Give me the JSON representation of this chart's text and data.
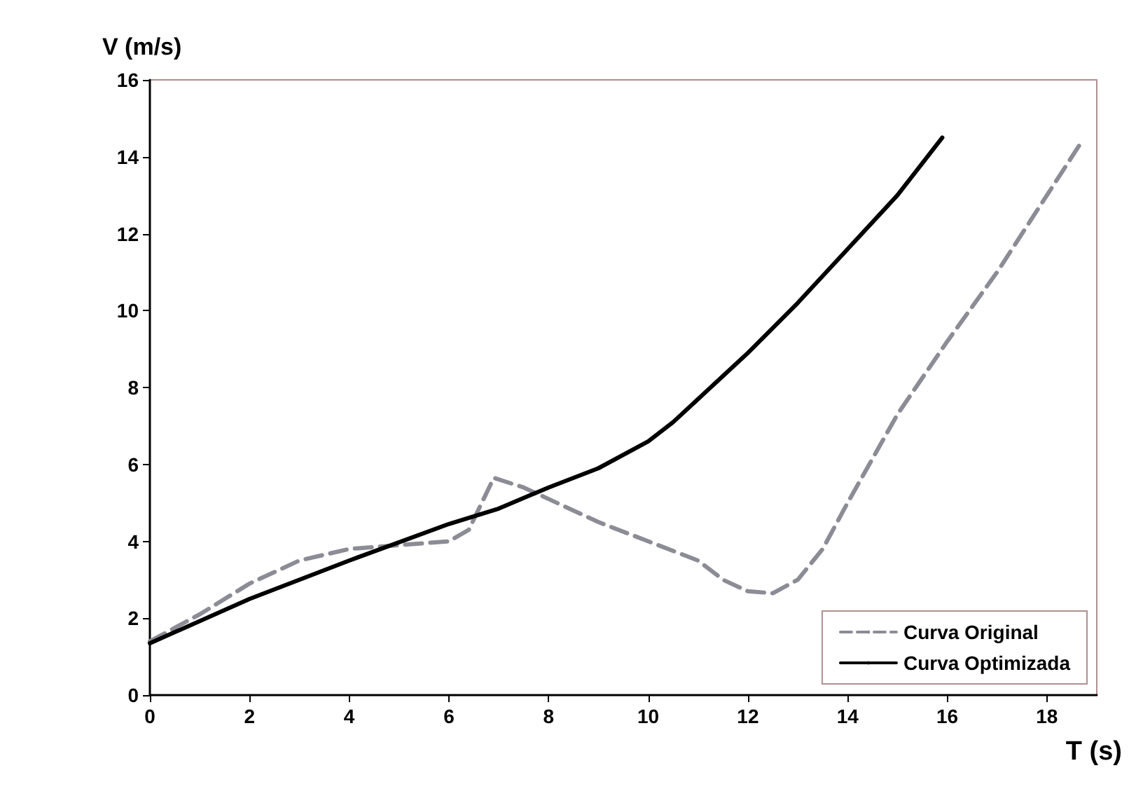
{
  "chart_data": {
    "type": "line",
    "xlabel": "T (s)",
    "ylabel": "V (m/s)",
    "xlim": [
      0,
      19
    ],
    "xticks": [
      0,
      2,
      4,
      6,
      8,
      10,
      12,
      14,
      16,
      18
    ],
    "ylim": [
      0,
      16
    ],
    "yticks": [
      0,
      2,
      4,
      6,
      8,
      10,
      12,
      14,
      16
    ],
    "grid": false,
    "legend": "bottom right",
    "marker": "none",
    "series": [
      {
        "name": "Curva Original",
        "color": "#8c8c96",
        "line_style": "dashed",
        "x": [
          0,
          1,
          2,
          3,
          4,
          5,
          6,
          6.4,
          6.9,
          7.5,
          8,
          9,
          10,
          11,
          11.5,
          12,
          12.5,
          13,
          13.5,
          14,
          15,
          16,
          17,
          18,
          18.7
        ],
        "values": [
          1.4,
          2.1,
          2.9,
          3.5,
          3.8,
          3.9,
          4.0,
          4.3,
          5.65,
          5.4,
          5.1,
          4.5,
          4.0,
          3.5,
          3.0,
          2.7,
          2.65,
          3.0,
          3.8,
          5.0,
          7.3,
          9.2,
          11.0,
          13.0,
          14.4
        ]
      },
      {
        "name": "Curva Optimizada",
        "color": "#000000",
        "line_style": "solid",
        "x": [
          0,
          2,
          4,
          6,
          7,
          8,
          9,
          10,
          10.5,
          11,
          12,
          13,
          14,
          15,
          15.9
        ],
        "values": [
          1.35,
          2.5,
          3.5,
          4.45,
          4.85,
          5.4,
          5.9,
          6.6,
          7.1,
          7.7,
          8.9,
          10.2,
          11.6,
          13.0,
          14.5
        ]
      }
    ]
  }
}
